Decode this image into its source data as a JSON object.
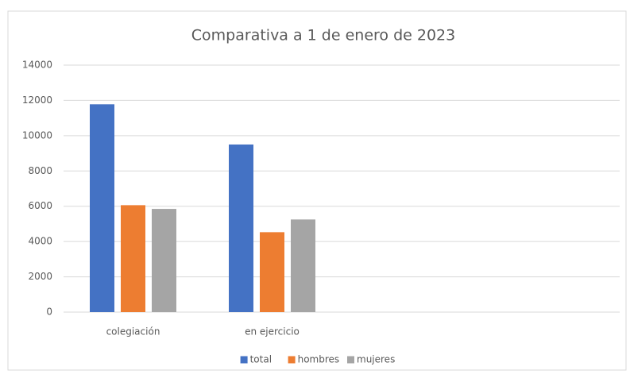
{
  "chart_data": {
    "type": "bar",
    "title": "Comparativa a 1 de enero de 2023",
    "categories": [
      "colegiación",
      "en ejercicio",
      null,
      null
    ],
    "series": [
      {
        "name": "total",
        "color": "#4472c4",
        "values": [
          11780,
          9500,
          null,
          null
        ]
      },
      {
        "name": "hombres",
        "color": "#ed7d31",
        "values": [
          6060,
          4530,
          null,
          null
        ]
      },
      {
        "name": "mujeres",
        "color": "#a5a5a5",
        "values": [
          5850,
          5250,
          null,
          null
        ]
      }
    ],
    "ylim": [
      0,
      14000
    ],
    "yticks": [
      0,
      2000,
      4000,
      6000,
      8000,
      10000,
      12000,
      14000
    ],
    "grid": true,
    "legend": "bottom"
  }
}
